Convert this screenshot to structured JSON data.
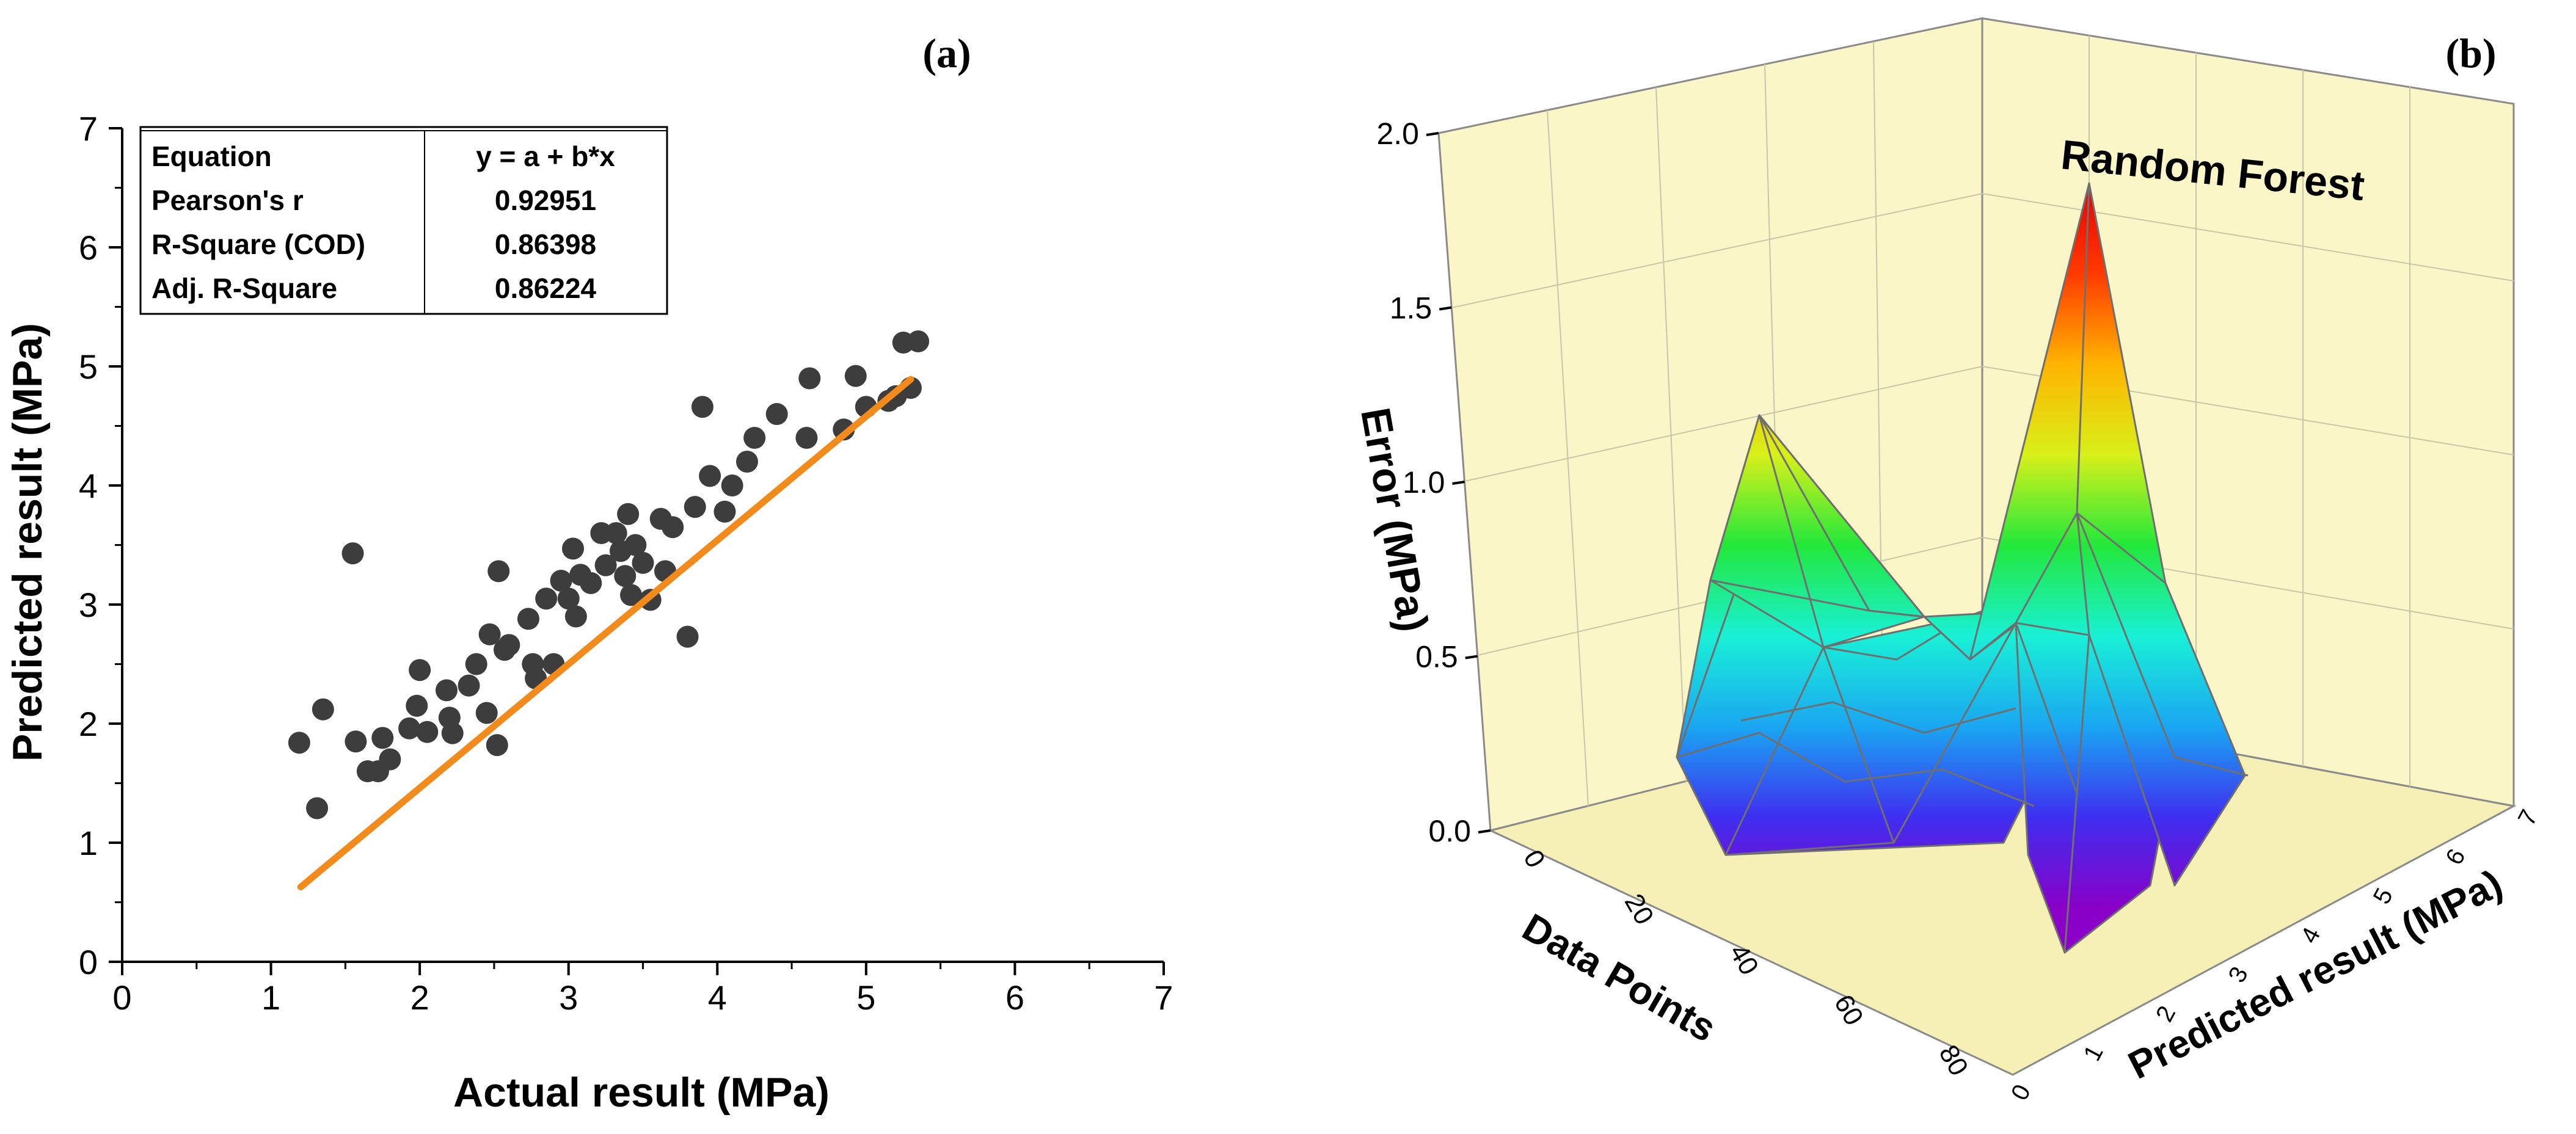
{
  "chart_data": [
    {
      "panel": "(a)",
      "type": "scatter",
      "xlabel": "Actual result (MPa)",
      "ylabel": "Predicted result (MPa)",
      "xlim": [
        0,
        7
      ],
      "ylim": [
        0,
        7
      ],
      "xticks": [
        0,
        1,
        2,
        3,
        4,
        5,
        6,
        7
      ],
      "yticks": [
        0,
        1,
        2,
        3,
        4,
        5,
        6,
        7
      ],
      "grid": false,
      "marker_color": "#3d3d3d",
      "fit_color": "#f28a1c",
      "fit": {
        "a": -0.62,
        "b": 1.04,
        "x_range": [
          1.2,
          5.3
        ]
      },
      "stats_table": [
        {
          "label": "Equation",
          "value": "y = a + b*x"
        },
        {
          "label": "Pearson's r",
          "value": "0.92951"
        },
        {
          "label": "R-Square (COD)",
          "value": "0.86398"
        },
        {
          "label": "Adj. R-Square",
          "value": "0.86224"
        }
      ],
      "points": [
        [
          1.19,
          1.84
        ],
        [
          1.31,
          1.29
        ],
        [
          1.35,
          2.12
        ],
        [
          1.55,
          3.43
        ],
        [
          1.57,
          1.85
        ],
        [
          1.65,
          1.6
        ],
        [
          1.72,
          1.6
        ],
        [
          1.75,
          1.88
        ],
        [
          1.8,
          1.7
        ],
        [
          1.93,
          1.96
        ],
        [
          1.98,
          2.15
        ],
        [
          2.0,
          2.45
        ],
        [
          2.05,
          1.93
        ],
        [
          2.18,
          2.28
        ],
        [
          2.2,
          2.05
        ],
        [
          2.22,
          1.92
        ],
        [
          2.33,
          2.32
        ],
        [
          2.38,
          2.5
        ],
        [
          2.45,
          2.09
        ],
        [
          2.47,
          2.75
        ],
        [
          2.52,
          1.82
        ],
        [
          2.53,
          3.28
        ],
        [
          2.57,
          2.62
        ],
        [
          2.6,
          2.66
        ],
        [
          2.73,
          2.88
        ],
        [
          2.76,
          2.5
        ],
        [
          2.78,
          2.38
        ],
        [
          2.85,
          3.05
        ],
        [
          2.9,
          2.5
        ],
        [
          2.95,
          3.2
        ],
        [
          3.0,
          3.05
        ],
        [
          3.03,
          3.47
        ],
        [
          3.05,
          2.9
        ],
        [
          3.08,
          3.25
        ],
        [
          3.15,
          3.18
        ],
        [
          3.22,
          3.6
        ],
        [
          3.25,
          3.33
        ],
        [
          3.32,
          3.6
        ],
        [
          3.35,
          3.45
        ],
        [
          3.38,
          3.24
        ],
        [
          3.4,
          3.76
        ],
        [
          3.42,
          3.08
        ],
        [
          3.45,
          3.5
        ],
        [
          3.5,
          3.35
        ],
        [
          3.55,
          3.04
        ],
        [
          3.62,
          3.72
        ],
        [
          3.65,
          3.28
        ],
        [
          3.7,
          3.65
        ],
        [
          3.8,
          2.73
        ],
        [
          3.85,
          3.82
        ],
        [
          3.9,
          4.66
        ],
        [
          3.95,
          4.08
        ],
        [
          4.05,
          3.78
        ],
        [
          4.1,
          4.0
        ],
        [
          4.2,
          4.2
        ],
        [
          4.25,
          4.4
        ],
        [
          4.4,
          4.6
        ],
        [
          4.6,
          4.4
        ],
        [
          4.62,
          4.9
        ],
        [
          4.85,
          4.47
        ],
        [
          4.93,
          4.92
        ],
        [
          5.0,
          4.66
        ],
        [
          5.15,
          4.71
        ],
        [
          5.2,
          4.75
        ],
        [
          5.25,
          5.2
        ],
        [
          5.3,
          4.82
        ],
        [
          5.35,
          5.21
        ]
      ]
    },
    {
      "panel": "(b)",
      "type": "surface3d",
      "title": "Random Forest",
      "xlabel": "Data Points",
      "ylabel": "Predicted result (MPa)",
      "zlabel": "Error (MPa)",
      "xticks": [
        "0",
        "20",
        "40",
        "60",
        "80"
      ],
      "yticks": [
        "0",
        "1",
        "2",
        "3",
        "4",
        "5",
        "6",
        "7"
      ],
      "zticks": [
        "0.0",
        "0.5",
        "1.0",
        "1.5",
        "2.0"
      ],
      "zlim": [
        0,
        2
      ],
      "colormap": [
        "#8a00c8",
        "#3f2ef0",
        "#1aa6f2",
        "#19f0d6",
        "#22e83a",
        "#d8f01a",
        "#ffb400",
        "#ff3a00",
        "#e60000"
      ],
      "wall_color": "#fbf6c8",
      "peaks_error": [
        {
          "data_point": 20,
          "predicted": 2.5,
          "error": 1.22
        },
        {
          "data_point": 55,
          "predicted": 5.2,
          "error": 1.85
        },
        {
          "data_point": 60,
          "predicted": 3.8,
          "error": 0.95
        }
      ]
    }
  ]
}
